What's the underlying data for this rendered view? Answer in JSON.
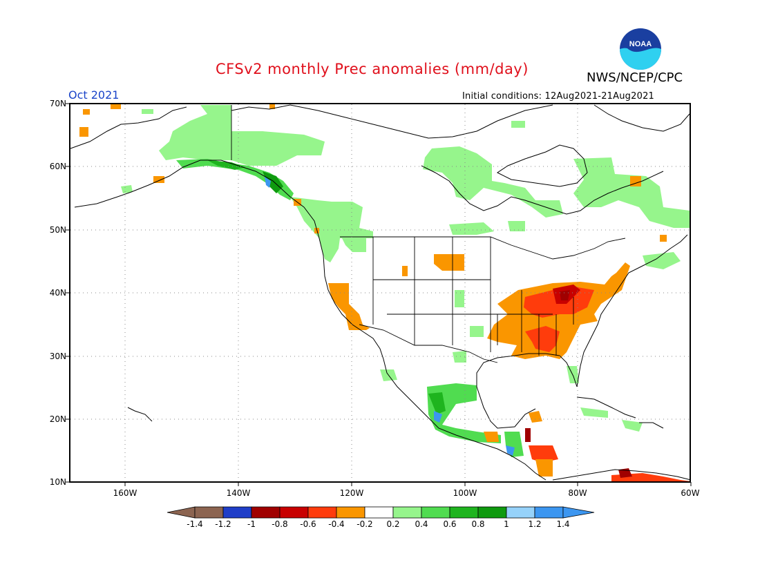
{
  "header": {
    "title": "CFSv2 monthly Prec anomalies (mm/day)",
    "agency": "NWS/NCEP/CPC",
    "logo_text": "NOAA",
    "valid_month": "Oct 2021",
    "initial_conditions": "Initial conditions: 12Aug2021-21Aug2021"
  },
  "axes": {
    "lat_labels": [
      "70N",
      "60N",
      "50N",
      "40N",
      "30N",
      "20N",
      "10N"
    ],
    "lon_labels": [
      "160W",
      "140W",
      "120W",
      "100W",
      "80W",
      "60W"
    ],
    "lat_range": [
      10,
      70
    ],
    "lon_range": [
      -170,
      -60
    ],
    "grid": true
  },
  "colorbar": {
    "labels": [
      "-1.4",
      "-1.2",
      "-1",
      "-0.8",
      "-0.6",
      "-0.4",
      "-0.2",
      "0.2",
      "0.4",
      "0.6",
      "0.8",
      "1",
      "1.2",
      "1.4"
    ],
    "colors": [
      "#8c6450",
      "#8c6450",
      "#1f3ec8",
      "#a00000",
      "#c80000",
      "#ff3c0c",
      "#fa9600",
      "#ffffff",
      "#96f58c",
      "#50dc50",
      "#1eb41e",
      "#0f9a0f",
      "#96d2fa",
      "#3c96f0",
      "#3c96f0"
    ]
  },
  "anomaly_regions": [
    {
      "name": "alaska-gulf-coast",
      "level": "0.4"
    },
    {
      "name": "alaska-interior",
      "level": "0.2"
    },
    {
      "name": "pacific-northwest",
      "level": "0.2"
    },
    {
      "name": "california",
      "level": "-0.2"
    },
    {
      "name": "northern-plains",
      "level": "-0.2"
    },
    {
      "name": "ohio-valley-mid-atlantic",
      "level": "-0.6"
    },
    {
      "name": "southeast-us",
      "level": "-0.4"
    },
    {
      "name": "hudson-bay-region",
      "level": "0.2"
    },
    {
      "name": "west-mexico-coast",
      "level": "0.6"
    },
    {
      "name": "central-america",
      "level": "-0.4"
    },
    {
      "name": "northern-south-america",
      "level": "-0.6"
    }
  ]
}
